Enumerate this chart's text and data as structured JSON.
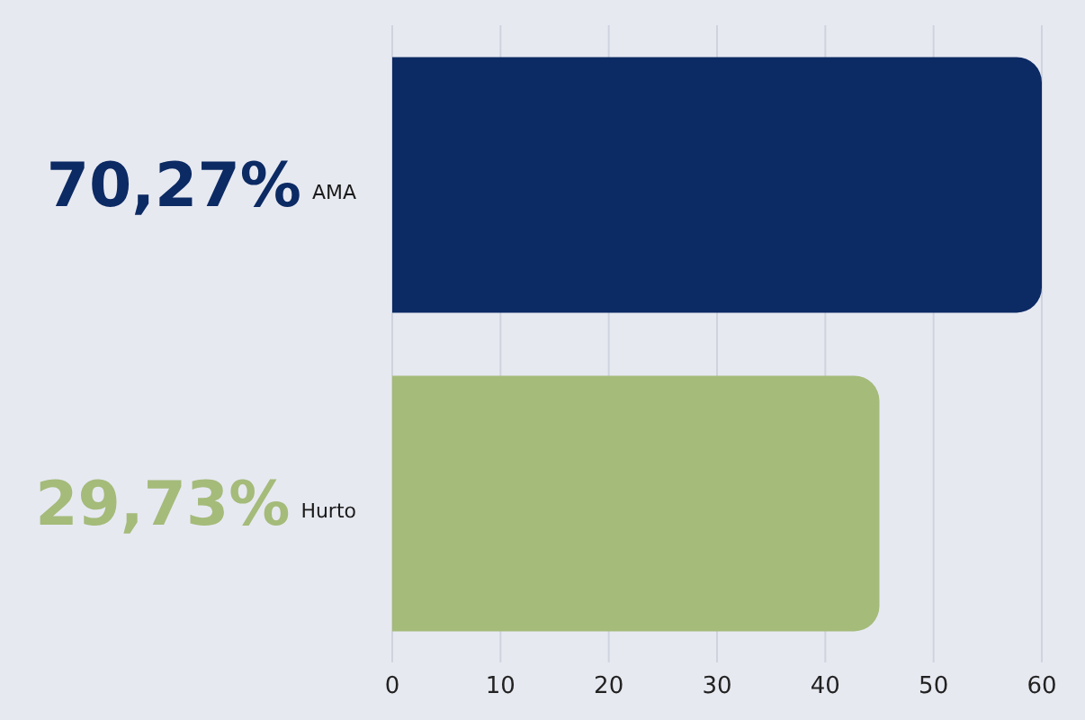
{
  "chart_data": {
    "type": "bar",
    "orientation": "horizontal",
    "categories": [
      "AMA",
      "Hurto"
    ],
    "values": [
      60,
      45
    ],
    "annotations": [
      "70,27%",
      "29,73%"
    ],
    "colors": [
      "#0c2a63",
      "#a4bb7a"
    ],
    "xlim": [
      0,
      60
    ],
    "xticks": [
      0,
      10,
      20,
      30,
      40,
      50,
      60
    ],
    "grid": "x"
  }
}
